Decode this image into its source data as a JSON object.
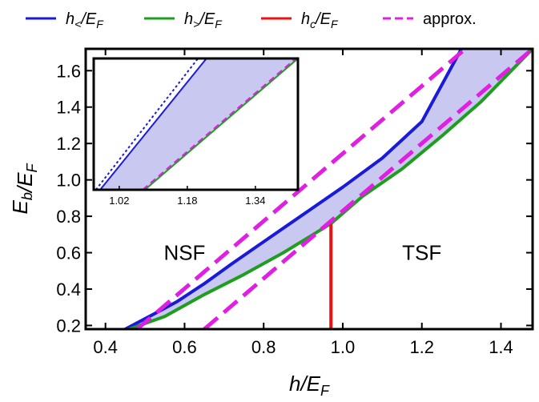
{
  "chart_data": [
    {
      "type": "line",
      "xlabel": "h/E_F",
      "ylabel": "E_b/E_F",
      "xlim": [
        0.35,
        1.48
      ],
      "ylim": [
        0.18,
        1.72
      ],
      "xticks": [
        0.4,
        0.6,
        0.8,
        1.0,
        1.2,
        1.4
      ],
      "xtick_labels": [
        "0.4",
        "0.6",
        "0.8",
        "1.0",
        "1.2",
        "1.4"
      ],
      "yticks": [
        0.2,
        0.4,
        0.6,
        0.8,
        1.0,
        1.2,
        1.4,
        1.6
      ],
      "ytick_labels": [
        "0.2",
        "0.4",
        "0.6",
        "0.8",
        "1.0",
        "1.2",
        "1.4",
        "1.6"
      ],
      "legend": {
        "placement": "top",
        "entries": [
          {
            "key": "h_lt",
            "label": "h</E_F",
            "color": "#1a1adb",
            "dash": false
          },
          {
            "key": "h_gt",
            "label": "h>/E_F",
            "color": "#1e9e1e",
            "dash": false
          },
          {
            "key": "h_c",
            "label": "hc/E_F",
            "color": "#ee1111",
            "dash": false
          },
          {
            "key": "approx",
            "label": "approx.",
            "color": "#e020e0",
            "dash": true
          }
        ]
      },
      "regions": [
        {
          "label": "NSF",
          "x": 0.6,
          "y": 0.6
        },
        {
          "label": "TSF",
          "x": 1.2,
          "y": 0.6
        }
      ],
      "shading_color": "#c8c8f0",
      "series": [
        {
          "key": "h_lt",
          "color": "#1a1adb",
          "x": [
            0.45,
            0.52,
            0.58,
            0.65,
            0.72,
            0.8,
            0.9,
            1.0,
            1.1,
            1.2,
            1.3
          ],
          "y": [
            0.18,
            0.26,
            0.33,
            0.43,
            0.54,
            0.66,
            0.81,
            0.96,
            1.12,
            1.32,
            1.72
          ]
        },
        {
          "key": "h_gt",
          "color": "#1e9e1e",
          "x": [
            0.46,
            0.55,
            0.65,
            0.75,
            0.85,
            0.97,
            1.05,
            1.15,
            1.25,
            1.35,
            1.48
          ],
          "y": [
            0.18,
            0.25,
            0.37,
            0.48,
            0.6,
            0.76,
            0.91,
            1.06,
            1.24,
            1.43,
            1.72
          ]
        },
        {
          "key": "h_c",
          "color": "#ee1111",
          "x": [
            0.97,
            0.97
          ],
          "y": [
            0.18,
            0.76
          ]
        },
        {
          "key": "approx_upper",
          "color": "#e020e0",
          "dashed": true,
          "x": [
            0.48,
            1.31
          ],
          "y": [
            0.18,
            1.72
          ]
        },
        {
          "key": "approx_lower",
          "color": "#e020e0",
          "dashed": true,
          "x": [
            0.65,
            1.48
          ],
          "y": [
            0.18,
            1.72
          ]
        }
      ]
    },
    {
      "type": "line",
      "role": "inset",
      "xlim": [
        0.96,
        1.44
      ],
      "ylim": [
        1.0,
        1.72
      ],
      "xticks": [
        1.02,
        1.18,
        1.34
      ],
      "xtick_labels": [
        "1.02",
        "1.18",
        "1.34"
      ],
      "series": [
        {
          "key": "h_lt",
          "color": "#1a1adb",
          "x": [
            0.975,
            1.225
          ],
          "y": [
            1.0,
            1.72
          ]
        },
        {
          "key": "approx_upper",
          "color": "#1a1adb",
          "dotted": true,
          "x": [
            0.965,
            1.205
          ],
          "y": [
            1.0,
            1.72
          ]
        },
        {
          "key": "h_gt",
          "color": "#1e9e1e",
          "x": [
            1.08,
            1.44
          ],
          "y": [
            1.0,
            1.72
          ]
        },
        {
          "key": "approx_lower",
          "color": "#e020e0",
          "dashed": true,
          "x": [
            1.075,
            1.435
          ],
          "y": [
            1.0,
            1.72
          ]
        }
      ]
    }
  ]
}
